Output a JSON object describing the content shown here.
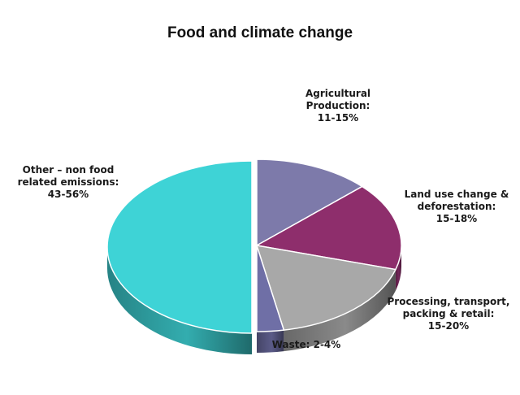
{
  "chart_data": {
    "type": "pie",
    "title": "Food and climate change",
    "slices": [
      {
        "label": [
          "Agricultural",
          "Production:",
          "11-15%"
        ],
        "range": [
          11,
          15
        ],
        "value": 13,
        "color": "#7d7aaa"
      },
      {
        "label": [
          "Land use change &",
          "deforestation:",
          "15-18%"
        ],
        "range": [
          15,
          18
        ],
        "value": 16.5,
        "color": "#8e2e6c"
      },
      {
        "label": [
          "Processing, transport,",
          "packing & retail:",
          "15-20%"
        ],
        "range": [
          15,
          20
        ],
        "value": 17.5,
        "color": "#a8a8a8"
      },
      {
        "label": [
          "Waste: 2-4%"
        ],
        "range": [
          2,
          4
        ],
        "value": 3,
        "color": "#6f6fa6"
      },
      {
        "label": [
          "Other – non food",
          "related emissions:",
          "43-56%"
        ],
        "range": [
          43,
          56
        ],
        "value": 50,
        "color": "#3ed3d6"
      }
    ]
  }
}
